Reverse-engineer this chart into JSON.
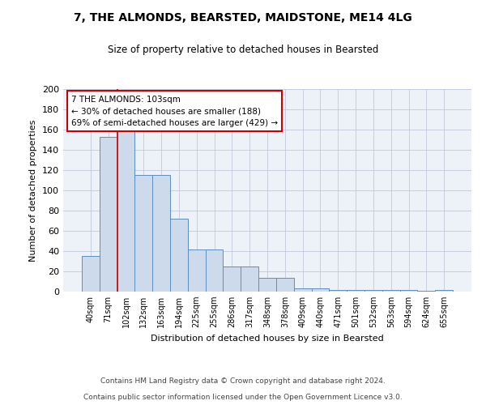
{
  "title1": "7, THE ALMONDS, BEARSTED, MAIDSTONE, ME14 4LG",
  "title2": "Size of property relative to detached houses in Bearsted",
  "xlabel": "Distribution of detached houses by size in Bearsted",
  "ylabel": "Number of detached properties",
  "bar_labels": [
    "40sqm",
    "71sqm",
    "102sqm",
    "132sqm",
    "163sqm",
    "194sqm",
    "225sqm",
    "255sqm",
    "286sqm",
    "317sqm",
    "348sqm",
    "378sqm",
    "409sqm",
    "440sqm",
    "471sqm",
    "501sqm",
    "532sqm",
    "563sqm",
    "594sqm",
    "624sqm",
    "655sqm"
  ],
  "bar_values": [
    35,
    153,
    163,
    115,
    115,
    72,
    42,
    42,
    25,
    25,
    14,
    14,
    3,
    3,
    2,
    2,
    2,
    2,
    2,
    1,
    2
  ],
  "bar_color": "#ccdaeb",
  "bar_edge_color": "#5a8fc0",
  "annotation_text": "7 THE ALMONDS: 103sqm\n← 30% of detached houses are smaller (188)\n69% of semi-detached houses are larger (429) →",
  "annotation_box_color": "#ffffff",
  "annotation_box_edge": "#cc0000",
  "vline_x": 1.5,
  "vline_color": "#cc0000",
  "ylim": [
    0,
    200
  ],
  "yticks": [
    0,
    20,
    40,
    60,
    80,
    100,
    120,
    140,
    160,
    180,
    200
  ],
  "footer1": "Contains HM Land Registry data © Crown copyright and database right 2024.",
  "footer2": "Contains public sector information licensed under the Open Government Licence v3.0.",
  "bg_color": "#edf2f9",
  "grid_color": "#c0c8d8"
}
